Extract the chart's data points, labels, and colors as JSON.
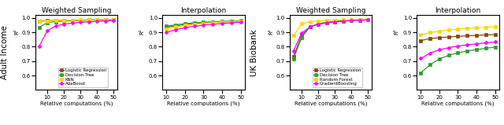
{
  "x_ws": [
    5,
    10,
    15,
    20,
    25,
    30,
    35,
    40,
    45,
    50
  ],
  "x_interp": [
    10,
    15,
    20,
    25,
    30,
    35,
    40,
    45,
    50
  ],
  "adult_ws": {
    "Logistic Regression": [
      0.978,
      0.981,
      0.982,
      0.983,
      0.984,
      0.985,
      0.986,
      0.987,
      0.988,
      0.989
    ],
    "Decision Tree": [
      0.932,
      0.968,
      0.974,
      0.978,
      0.98,
      0.982,
      0.984,
      0.986,
      0.987,
      0.988
    ],
    "KNN": [
      0.975,
      0.979,
      0.981,
      0.983,
      0.985,
      0.986,
      0.987,
      0.988,
      0.989,
      0.99
    ],
    "AdaBoost": [
      0.8,
      0.912,
      0.943,
      0.957,
      0.964,
      0.969,
      0.973,
      0.976,
      0.979,
      0.982
    ]
  },
  "adult_interp": {
    "Logistic Regression": [
      0.935,
      0.945,
      0.953,
      0.96,
      0.965,
      0.969,
      0.972,
      0.975,
      0.977
    ],
    "Decision Tree": [
      0.942,
      0.952,
      0.96,
      0.966,
      0.97,
      0.973,
      0.976,
      0.978,
      0.98
    ],
    "KNN": [
      0.925,
      0.937,
      0.948,
      0.956,
      0.962,
      0.967,
      0.971,
      0.974,
      0.977
    ],
    "AdaBoost": [
      0.9,
      0.918,
      0.932,
      0.942,
      0.95,
      0.956,
      0.961,
      0.966,
      0.97
    ]
  },
  "uk_ws": {
    "Logistic Regression": [
      0.73,
      0.878,
      0.938,
      0.957,
      0.967,
      0.974,
      0.979,
      0.982,
      0.985,
      0.987
    ],
    "Decision Tree": [
      0.715,
      0.865,
      0.938,
      0.959,
      0.969,
      0.976,
      0.98,
      0.983,
      0.986,
      0.988
    ],
    "Random Forest": [
      0.878,
      0.958,
      0.974,
      0.979,
      0.982,
      0.984,
      0.986,
      0.987,
      0.988,
      0.989
    ],
    "GradientBoosting": [
      0.77,
      0.895,
      0.937,
      0.956,
      0.965,
      0.972,
      0.977,
      0.981,
      0.984,
      0.986
    ]
  },
  "uk_interp": {
    "Logistic Regression": [
      0.843,
      0.856,
      0.863,
      0.868,
      0.872,
      0.876,
      0.879,
      0.882,
      0.884
    ],
    "Decision Tree": [
      0.618,
      0.675,
      0.715,
      0.74,
      0.758,
      0.77,
      0.78,
      0.789,
      0.798
    ],
    "Random Forest": [
      0.882,
      0.898,
      0.908,
      0.916,
      0.922,
      0.927,
      0.931,
      0.935,
      0.939
    ],
    "GradientBoosting": [
      0.718,
      0.756,
      0.778,
      0.793,
      0.805,
      0.813,
      0.82,
      0.827,
      0.833
    ]
  },
  "colors": {
    "Logistic Regression": "#8B4513",
    "Decision Tree": "#2ca02c",
    "KNN": "#FFD700",
    "AdaBoost": "#FF00FF",
    "Random Forest": "#FFD700",
    "GradientBoosting": "#FF00FF"
  },
  "ylim": [
    0.5,
    1.02
  ],
  "yticks": [
    0.6,
    0.7,
    0.8,
    0.9,
    1.0
  ],
  "col_titles": [
    "Weighted Sampling",
    "Interpolation",
    "Weighted Sampling",
    "Interpolation"
  ],
  "row_labels": [
    "Adult Income",
    "UK Biobank"
  ],
  "xlabel": "Relative computations (%)",
  "ylabel": "R²",
  "adult_legend": [
    "Logistic Regression",
    "Decision Tree",
    "KNN",
    "AdaBoost"
  ],
  "uk_legend": [
    "Logistic Regression",
    "Decision Tree",
    "Random Forest",
    "GradientBoosting"
  ]
}
